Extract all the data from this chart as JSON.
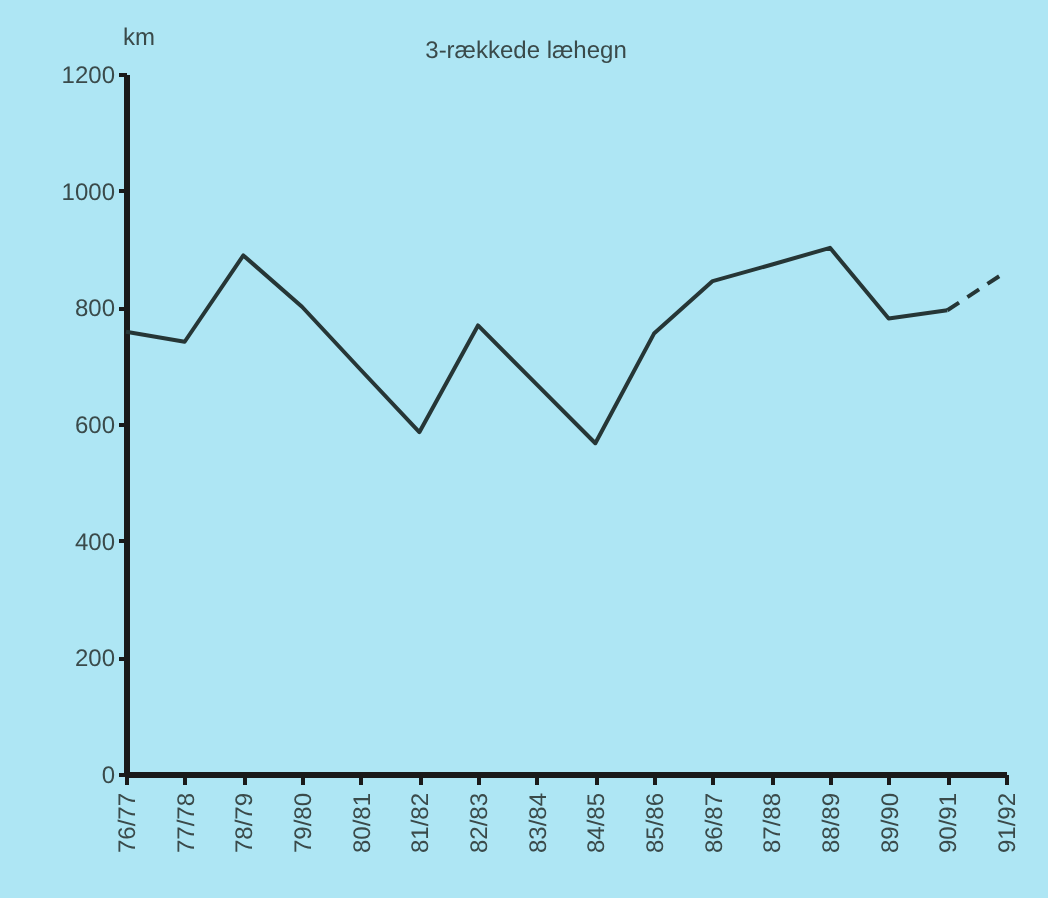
{
  "chart_data": {
    "type": "line",
    "title": "3-rækkede læhegn",
    "ylabel": "km",
    "categories": [
      "76/77",
      "77/78",
      "78/79",
      "79/80",
      "80/81",
      "81/82",
      "82/83",
      "83/84",
      "84/85",
      "85/86",
      "86/87",
      "87/88",
      "88/89",
      "89/90",
      "90/91",
      "91/92"
    ],
    "series": [
      {
        "color": "#263636",
        "line_style": "solid",
        "values": [
          758,
          741,
          889,
          801,
          693,
          586,
          769,
          668,
          567,
          755,
          845,
          873,
          902,
          781,
          795,
          null
        ]
      },
      {
        "color": "#263636",
        "line_style": "dashed",
        "values": [
          null,
          null,
          null,
          null,
          null,
          null,
          null,
          null,
          null,
          null,
          null,
          null,
          null,
          null,
          795,
          861
        ]
      }
    ],
    "ylim": [
      0,
      1200
    ],
    "yticks": [
      0,
      200,
      400,
      600,
      800,
      1000,
      1200
    ],
    "grid": false,
    "marker": "none"
  }
}
